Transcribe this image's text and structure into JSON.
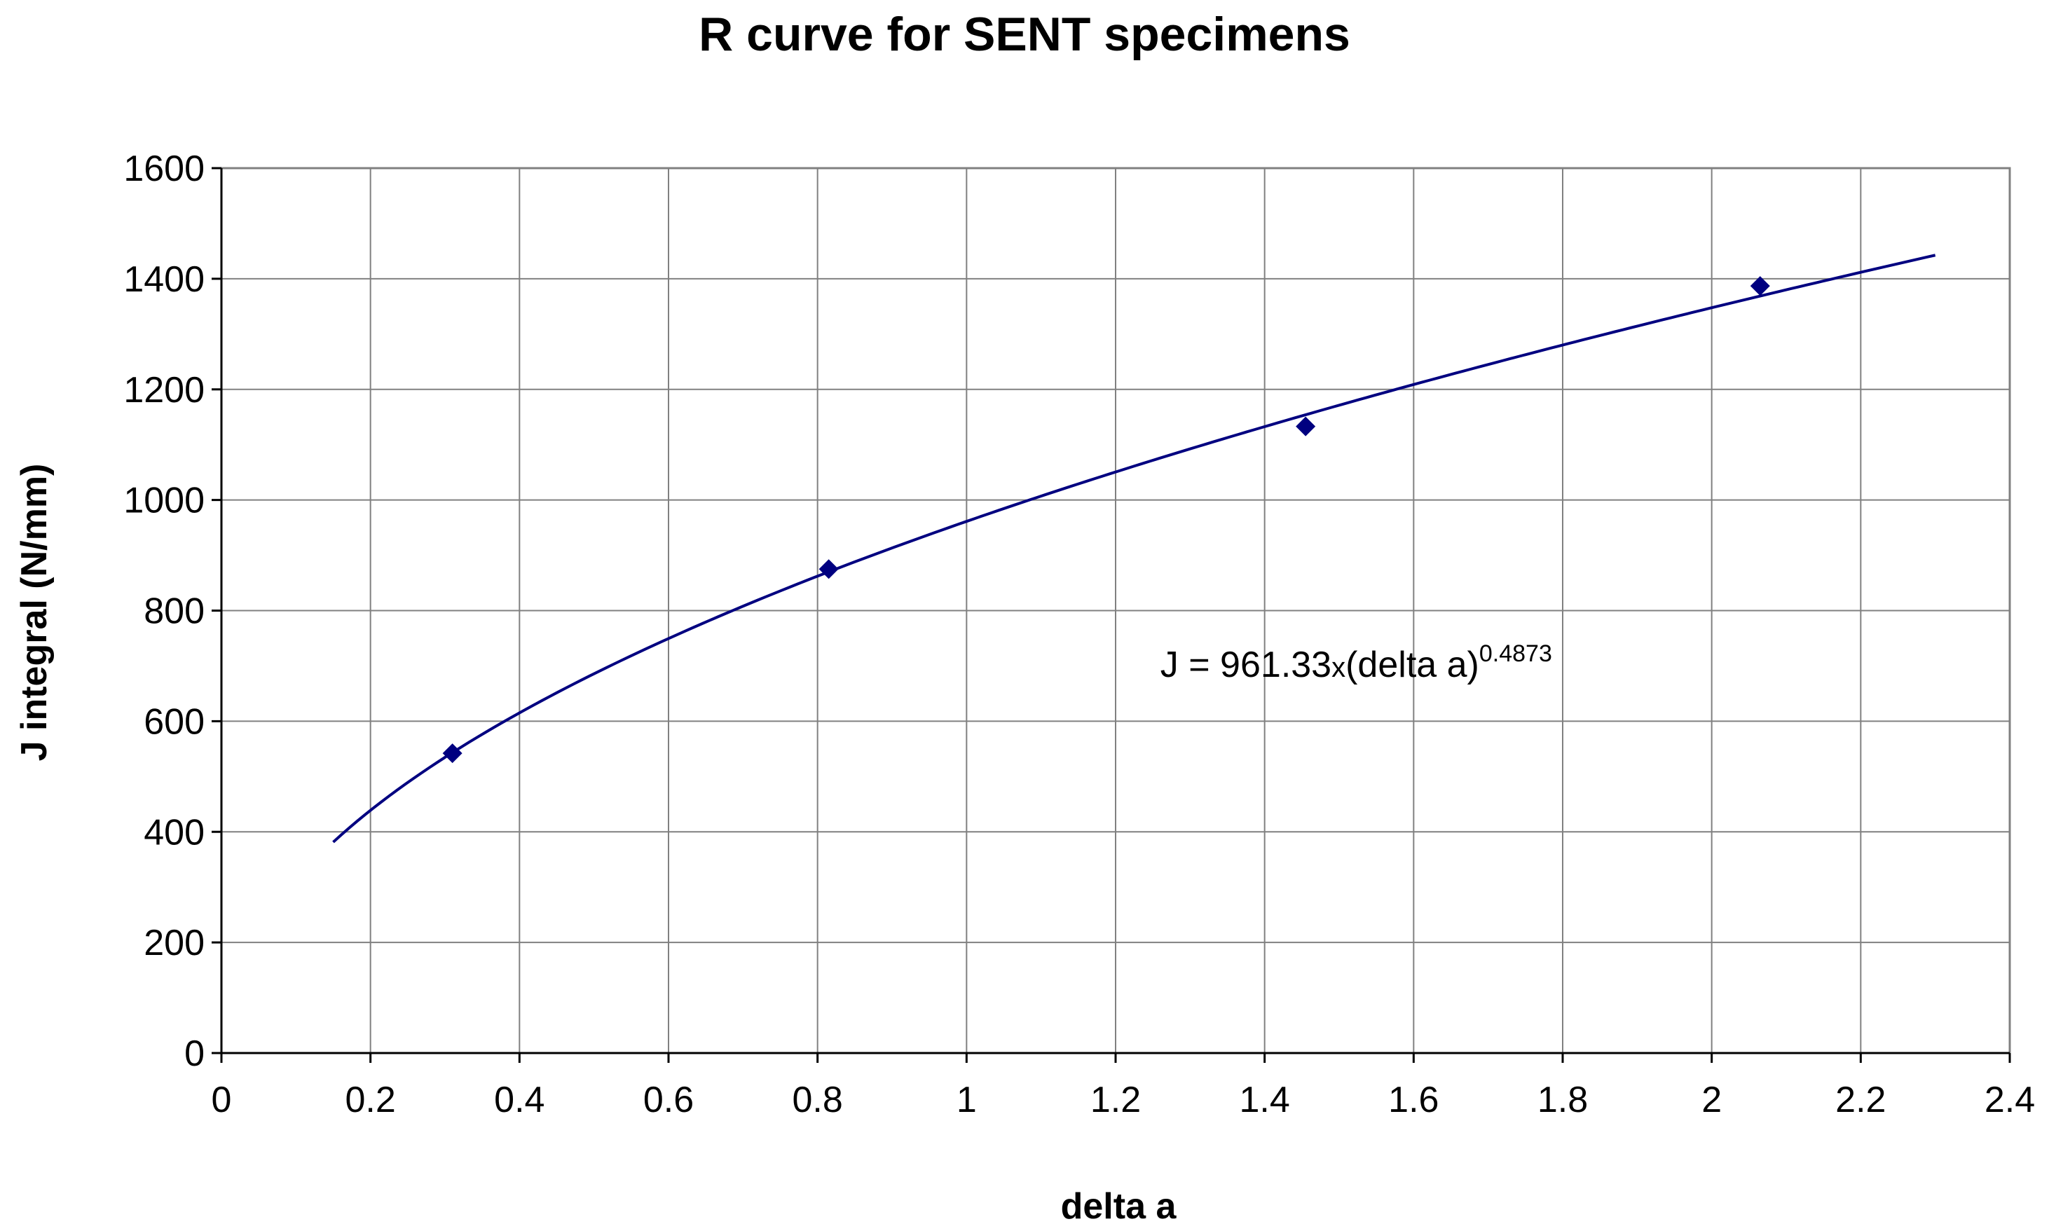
{
  "chart_data": {
    "type": "scatter",
    "title": "R curve for SENT specimens",
    "xlabel": "delta a",
    "ylabel": "J integral (N/mm)",
    "xlim": [
      0,
      2.4
    ],
    "ylim": [
      0,
      1600
    ],
    "x_ticks": [
      0,
      0.2,
      0.4,
      0.6,
      0.8,
      1,
      1.2,
      1.4,
      1.6,
      1.8,
      2,
      2.2,
      2.4
    ],
    "x_tick_labels": [
      "0",
      "0.2",
      "0.4",
      "0.6",
      "0.8",
      "1",
      "1.2",
      "1.4",
      "1.6",
      "1.8",
      "2",
      "2.2",
      "2.4"
    ],
    "y_ticks": [
      0,
      200,
      400,
      600,
      800,
      1000,
      1200,
      1400,
      1600
    ],
    "y_tick_labels": [
      "0",
      "200",
      "400",
      "600",
      "800",
      "1000",
      "1200",
      "1400",
      "1600"
    ],
    "grid": true,
    "series": [
      {
        "name": "SENT specimens",
        "marker": "diamond",
        "color": "#000080",
        "x": [
          0.31,
          0.815,
          1.455,
          2.065
        ],
        "y": [
          542,
          875,
          1133,
          1387
        ]
      }
    ],
    "fit": {
      "type": "power",
      "coefficient": 961.33,
      "exponent": 0.4873,
      "x_range": [
        0.15,
        2.3
      ],
      "color": "#000080"
    },
    "annotation": {
      "prefix": "J = 961.33",
      "times": "x",
      "body": "(delta a)",
      "exponent": "0.4873",
      "anchor_x": 1.26,
      "anchor_y": 680
    }
  }
}
